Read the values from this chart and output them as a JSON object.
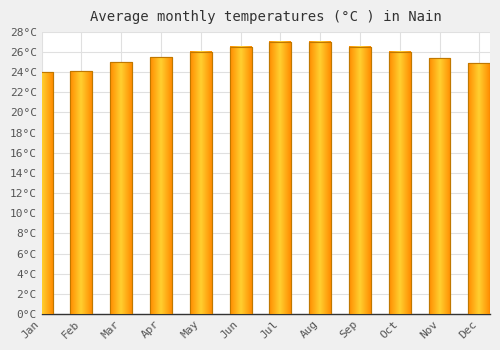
{
  "title": "Average monthly temperatures (°C ) in Nain",
  "months": [
    "Jan",
    "Feb",
    "Mar",
    "Apr",
    "May",
    "Jun",
    "Jul",
    "Aug",
    "Sep",
    "Oct",
    "Nov",
    "Dec"
  ],
  "values": [
    24.0,
    24.1,
    25.0,
    25.5,
    26.0,
    26.5,
    27.0,
    27.0,
    26.5,
    26.0,
    25.4,
    24.9
  ],
  "bar_color": "#FFA500",
  "bar_edge_color": "#CC8400",
  "ylim": [
    0,
    28
  ],
  "ytick_step": 2,
  "plot_bg_color": "#ffffff",
  "fig_bg_color": "#f0f0f0",
  "grid_color": "#e0e0e0",
  "title_fontsize": 10,
  "tick_fontsize": 8,
  "bar_width": 0.55
}
